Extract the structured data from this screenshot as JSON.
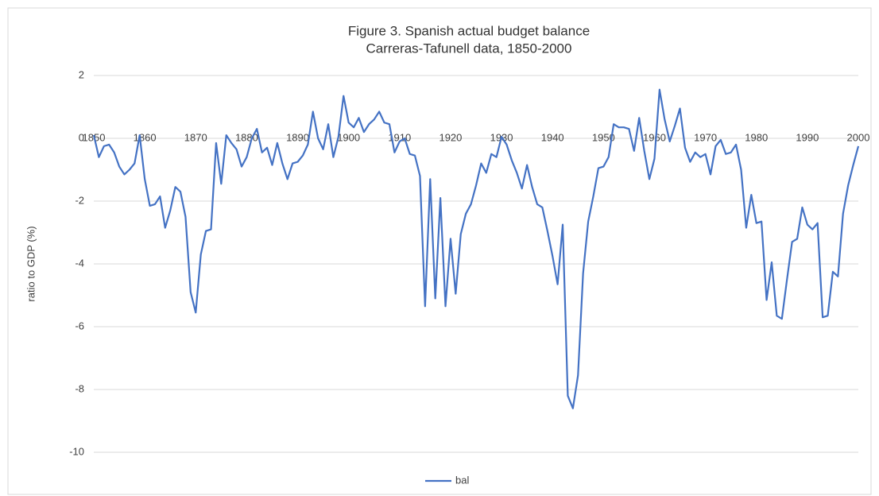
{
  "chart_data": {
    "type": "line",
    "title": "Figure 3. Spanish actual budget balance",
    "subtitle": "Carreras-Tafunell data, 1850-2000",
    "y_label": "ratio to GDP (%)",
    "x": [
      1850,
      1851,
      1852,
      1853,
      1854,
      1855,
      1856,
      1857,
      1858,
      1859,
      1860,
      1861,
      1862,
      1863,
      1864,
      1865,
      1866,
      1867,
      1868,
      1869,
      1870,
      1871,
      1872,
      1873,
      1874,
      1875,
      1876,
      1877,
      1878,
      1879,
      1880,
      1881,
      1882,
      1883,
      1884,
      1885,
      1886,
      1887,
      1888,
      1889,
      1890,
      1891,
      1892,
      1893,
      1894,
      1895,
      1896,
      1897,
      1898,
      1899,
      1900,
      1901,
      1902,
      1903,
      1904,
      1905,
      1906,
      1907,
      1908,
      1909,
      1910,
      1911,
      1912,
      1913,
      1914,
      1915,
      1916,
      1917,
      1918,
      1919,
      1920,
      1921,
      1922,
      1923,
      1924,
      1925,
      1926,
      1927,
      1928,
      1929,
      1930,
      1931,
      1932,
      1933,
      1934,
      1935,
      1936,
      1937,
      1938,
      1939,
      1940,
      1941,
      1942,
      1943,
      1944,
      1945,
      1946,
      1947,
      1948,
      1949,
      1950,
      1951,
      1952,
      1953,
      1954,
      1955,
      1956,
      1957,
      1958,
      1959,
      1960,
      1961,
      1962,
      1963,
      1964,
      1965,
      1966,
      1967,
      1968,
      1969,
      1970,
      1971,
      1972,
      1973,
      1974,
      1975,
      1976,
      1977,
      1978,
      1979,
      1980,
      1981,
      1982,
      1983,
      1984,
      1985,
      1986,
      1987,
      1988,
      1989,
      1990,
      1991,
      1992,
      1993,
      1994,
      1995,
      1996,
      1997,
      1998,
      1999,
      2000
    ],
    "series": [
      {
        "name": "bal",
        "color": "#4472c4",
        "values": [
          0.1,
          -0.6,
          -0.25,
          -0.2,
          -0.45,
          -0.9,
          -1.15,
          -1.0,
          -0.8,
          0.1,
          -1.3,
          -2.15,
          -2.1,
          -1.85,
          -2.85,
          -2.3,
          -1.55,
          -1.7,
          -2.5,
          -4.9,
          -5.55,
          -3.7,
          -2.95,
          -2.9,
          -0.15,
          -1.45,
          0.1,
          -0.15,
          -0.35,
          -0.9,
          -0.6,
          0.0,
          0.3,
          -0.45,
          -0.3,
          -0.85,
          -0.15,
          -0.8,
          -1.3,
          -0.8,
          -0.75,
          -0.55,
          -0.2,
          0.85,
          0.0,
          -0.35,
          0.45,
          -0.6,
          0.05,
          1.35,
          0.5,
          0.35,
          0.65,
          0.2,
          0.45,
          0.6,
          0.85,
          0.5,
          0.45,
          -0.45,
          -0.1,
          0.0,
          -0.5,
          -0.55,
          -1.2,
          -5.35,
          -1.3,
          -5.1,
          -1.9,
          -5.35,
          -3.2,
          -4.95,
          -3.05,
          -2.4,
          -2.1,
          -1.5,
          -0.8,
          -1.1,
          -0.5,
          -0.6,
          0.05,
          -0.2,
          -0.7,
          -1.1,
          -1.6,
          -0.85,
          -1.55,
          -2.1,
          -2.2,
          -2.95,
          -3.75,
          -4.65,
          -2.75,
          -8.2,
          -8.6,
          -7.55,
          -4.3,
          -2.65,
          -1.85,
          -0.95,
          -0.9,
          -0.6,
          0.45,
          0.35,
          0.35,
          0.3,
          -0.4,
          0.65,
          -0.4,
          -1.3,
          -0.65,
          1.55,
          0.6,
          -0.1,
          0.4,
          0.95,
          -0.3,
          -0.75,
          -0.45,
          -0.6,
          -0.5,
          -1.15,
          -0.25,
          -0.05,
          -0.5,
          -0.45,
          -0.2,
          -1.0,
          -2.85,
          -1.8,
          -2.7,
          -2.65,
          -5.15,
          -3.95,
          -5.65,
          -5.75,
          -4.5,
          -3.3,
          -3.2,
          -2.2,
          -2.75,
          -2.9,
          -2.7,
          -5.7,
          -5.65,
          -4.25,
          -4.4,
          -2.4,
          -1.5,
          -0.85,
          -0.25
        ]
      }
    ],
    "xlim": [
      1850,
      2000
    ],
    "xticks": [
      1850,
      1860,
      1870,
      1880,
      1890,
      1900,
      1910,
      1920,
      1930,
      1940,
      1950,
      1960,
      1970,
      1980,
      1990,
      2000
    ],
    "ylim": [
      -10,
      2
    ],
    "yticks": [
      -10,
      -8,
      -6,
      -4,
      -2,
      0,
      2
    ],
    "grid": true,
    "legend": "bottom"
  }
}
